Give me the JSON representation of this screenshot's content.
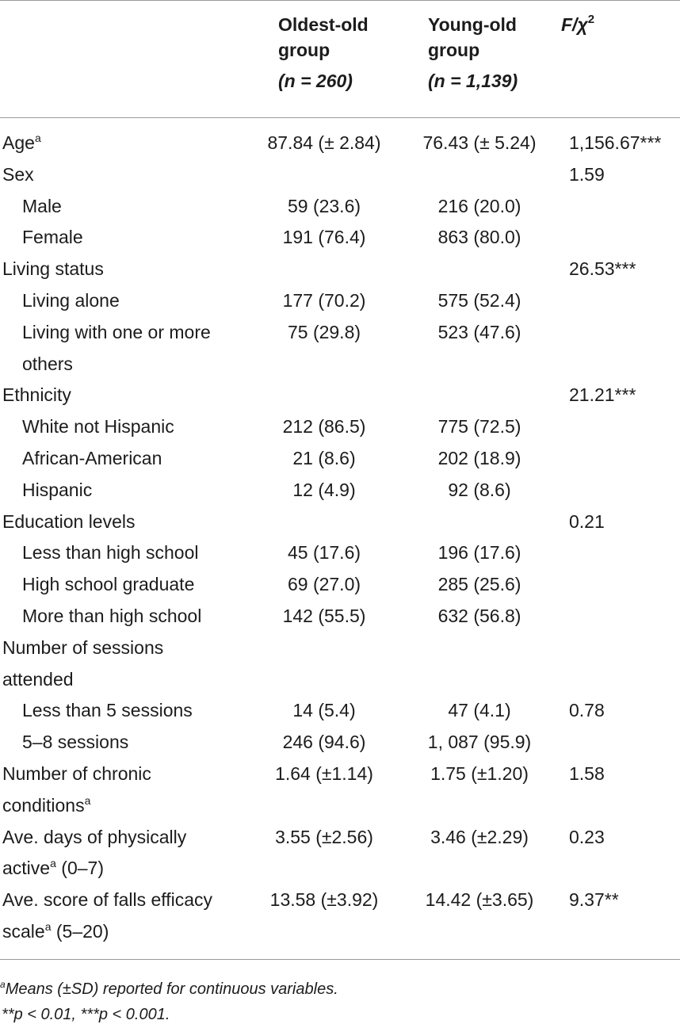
{
  "header": {
    "col1_line1": "Oldest-old",
    "col1_line2": "group",
    "col1_line3": "(n = 260)",
    "col2_line1": "Young-old",
    "col2_line2": "group",
    "col2_line3": "(n = 1,139)",
    "col3": "F/χ",
    "col3_sup": "2"
  },
  "rows": [
    {
      "label": "Age",
      "sup": "a",
      "c1": "87.84 (± 2.84)",
      "c2": "76.43 (± 5.24)",
      "c3": "1,156.67***"
    },
    {
      "label": "Sex",
      "c3": "1.59"
    },
    {
      "label": "Male",
      "c1": "59 (23.6)",
      "c2": "216 (20.0)"
    },
    {
      "label": "Female",
      "c1": "191 (76.4)",
      "c2": "863 (80.0)"
    },
    {
      "label": "Living status",
      "c3": "26.53***"
    },
    {
      "label": "Living alone",
      "c1": "177 (70.2)",
      "c2": "575 (52.4)"
    },
    {
      "label": "Living with one or more",
      "c1": "75 (29.8)",
      "c2": "523 (47.6)"
    },
    {
      "label": "others"
    },
    {
      "label": "Ethnicity",
      "c3": "21.21***"
    },
    {
      "label": "White not Hispanic",
      "c1": "212 (86.5)",
      "c2": "775 (72.5)"
    },
    {
      "label": "African-American",
      "c1": "21 (8.6)",
      "c2": "202 (18.9)"
    },
    {
      "label": "Hispanic",
      "c1": "12 (4.9)",
      "c2": "92 (8.6)"
    },
    {
      "label": "Education levels",
      "c3": "0.21"
    },
    {
      "label": "Less than high school",
      "c1": "45 (17.6)",
      "c2": "196 (17.6)"
    },
    {
      "label": "High school graduate",
      "c1": "69 (27.0)",
      "c2": "285 (25.6)"
    },
    {
      "label": "More than high school",
      "c1": "142 (55.5)",
      "c2": "632 (56.8)"
    },
    {
      "label": "Number of sessions"
    },
    {
      "label": "attended"
    },
    {
      "label": "Less than 5 sessions",
      "c1": "14 (5.4)",
      "c2": "47 (4.1)",
      "c3": "0.78"
    },
    {
      "label": "5–8 sessions",
      "c1": "246 (94.6)",
      "c2": "1, 087 (95.9)"
    },
    {
      "label": "Number of chronic",
      "c1": "1.64 (±1.14)",
      "c2": "1.75 (±1.20)",
      "c3": "1.58"
    },
    {
      "label": "conditions",
      "sup": "a"
    },
    {
      "label": "Ave. days of physically",
      "c1": "3.55 (±2.56)",
      "c2": "3.46 (±2.29)",
      "c3": "0.23"
    },
    {
      "label": "active",
      "sup": "a",
      "after": " (0–7)"
    },
    {
      "label": "Ave. score of falls efficacy",
      "c1": "13.58 (±3.92)",
      "c2": "14.42 (±3.65)",
      "c3": "9.37**"
    },
    {
      "label": "scale",
      "sup": "a",
      "after": " (5–20)"
    }
  ],
  "footnotes": {
    "note_a_sup": "a",
    "note_a": "Means (±SD) reported for continuous variables.",
    "note_p": "**p < 0.01,  ***p < 0.001."
  }
}
